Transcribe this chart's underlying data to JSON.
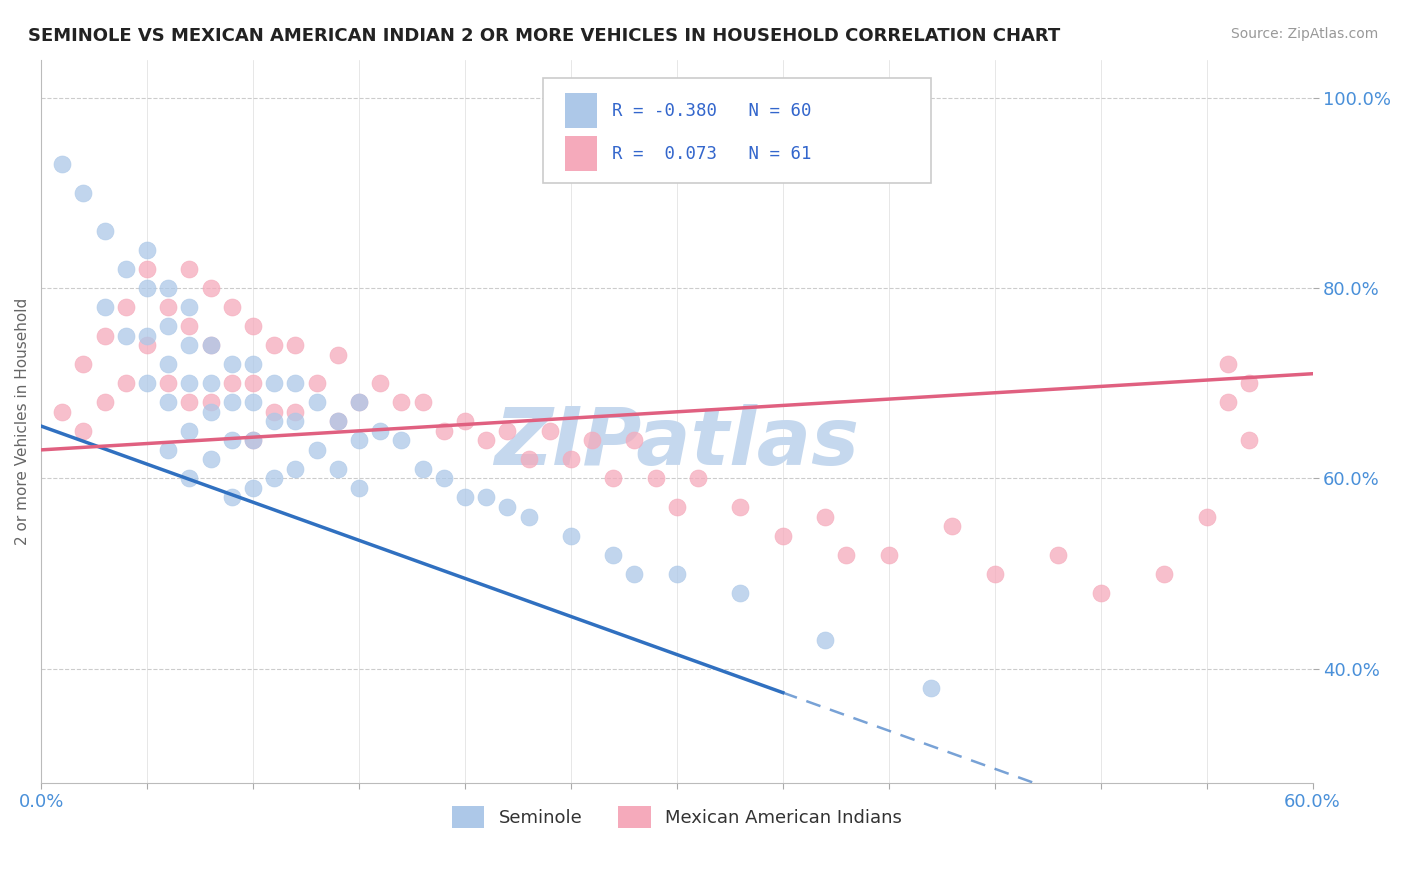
{
  "title": "SEMINOLE VS MEXICAN AMERICAN INDIAN 2 OR MORE VEHICLES IN HOUSEHOLD CORRELATION CHART",
  "source": "Source: ZipAtlas.com",
  "ylabel": "2 or more Vehicles in Household",
  "x_range": [
    0.0,
    0.6
  ],
  "y_range": [
    0.28,
    1.04
  ],
  "r_seminole": -0.38,
  "n_seminole": 60,
  "r_mexican": 0.073,
  "n_mexican": 61,
  "color_seminole": "#adc8e8",
  "color_mexican": "#f5aabb",
  "color_trend_seminole": "#3070c0",
  "color_trend_mexican": "#e06080",
  "color_watermark": "#c5d8ee",
  "trend_s_x0": 0.0,
  "trend_s_y0": 0.655,
  "trend_s_x1": 0.35,
  "trend_s_y1": 0.375,
  "trend_s_solid_end": 0.35,
  "trend_s_dash_end": 0.6,
  "trend_m_x0": 0.0,
  "trend_m_y0": 0.63,
  "trend_m_x1": 0.6,
  "trend_m_y1": 0.71,
  "seminole_x": [
    0.01,
    0.02,
    0.03,
    0.03,
    0.04,
    0.04,
    0.05,
    0.05,
    0.05,
    0.05,
    0.06,
    0.06,
    0.06,
    0.06,
    0.06,
    0.07,
    0.07,
    0.07,
    0.07,
    0.07,
    0.08,
    0.08,
    0.08,
    0.08,
    0.09,
    0.09,
    0.09,
    0.09,
    0.1,
    0.1,
    0.1,
    0.1,
    0.11,
    0.11,
    0.11,
    0.12,
    0.12,
    0.12,
    0.13,
    0.13,
    0.14,
    0.14,
    0.15,
    0.15,
    0.15,
    0.16,
    0.17,
    0.18,
    0.19,
    0.2,
    0.21,
    0.22,
    0.23,
    0.25,
    0.27,
    0.28,
    0.3,
    0.33,
    0.37,
    0.42
  ],
  "seminole_y": [
    0.93,
    0.9,
    0.86,
    0.78,
    0.82,
    0.75,
    0.84,
    0.8,
    0.75,
    0.7,
    0.8,
    0.76,
    0.72,
    0.68,
    0.63,
    0.78,
    0.74,
    0.7,
    0.65,
    0.6,
    0.74,
    0.7,
    0.67,
    0.62,
    0.72,
    0.68,
    0.64,
    0.58,
    0.72,
    0.68,
    0.64,
    0.59,
    0.7,
    0.66,
    0.6,
    0.7,
    0.66,
    0.61,
    0.68,
    0.63,
    0.66,
    0.61,
    0.68,
    0.64,
    0.59,
    0.65,
    0.64,
    0.61,
    0.6,
    0.58,
    0.58,
    0.57,
    0.56,
    0.54,
    0.52,
    0.5,
    0.5,
    0.48,
    0.43,
    0.38
  ],
  "mexican_x": [
    0.01,
    0.02,
    0.02,
    0.03,
    0.03,
    0.04,
    0.04,
    0.05,
    0.05,
    0.06,
    0.06,
    0.07,
    0.07,
    0.07,
    0.08,
    0.08,
    0.08,
    0.09,
    0.09,
    0.1,
    0.1,
    0.1,
    0.11,
    0.11,
    0.12,
    0.12,
    0.13,
    0.14,
    0.14,
    0.15,
    0.16,
    0.17,
    0.18,
    0.19,
    0.2,
    0.21,
    0.22,
    0.23,
    0.24,
    0.25,
    0.26,
    0.27,
    0.28,
    0.29,
    0.3,
    0.31,
    0.33,
    0.35,
    0.37,
    0.38,
    0.4,
    0.43,
    0.45,
    0.48,
    0.5,
    0.53,
    0.55,
    0.56,
    0.56,
    0.57,
    0.57
  ],
  "mexican_y": [
    0.67,
    0.72,
    0.65,
    0.75,
    0.68,
    0.78,
    0.7,
    0.82,
    0.74,
    0.78,
    0.7,
    0.82,
    0.76,
    0.68,
    0.8,
    0.74,
    0.68,
    0.78,
    0.7,
    0.76,
    0.7,
    0.64,
    0.74,
    0.67,
    0.74,
    0.67,
    0.7,
    0.73,
    0.66,
    0.68,
    0.7,
    0.68,
    0.68,
    0.65,
    0.66,
    0.64,
    0.65,
    0.62,
    0.65,
    0.62,
    0.64,
    0.6,
    0.64,
    0.6,
    0.57,
    0.6,
    0.57,
    0.54,
    0.56,
    0.52,
    0.52,
    0.55,
    0.5,
    0.52,
    0.48,
    0.5,
    0.56,
    0.72,
    0.68,
    0.7,
    0.64
  ]
}
